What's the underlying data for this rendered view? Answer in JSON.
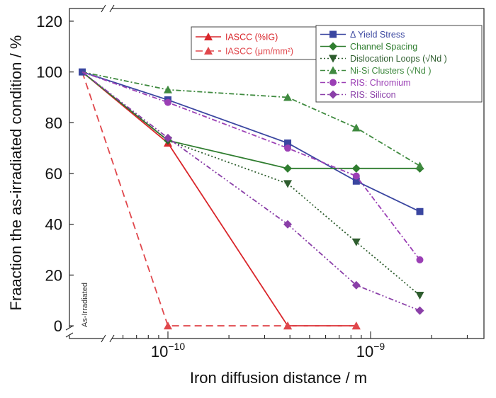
{
  "chart_data": {
    "type": "line",
    "xlabel": "Iron diffusion distance / m",
    "ylabel": "Fraaction the as-irradiated condition / %",
    "xscale": "log",
    "ylim": [
      -5,
      125
    ],
    "yticks": [
      0,
      20,
      40,
      60,
      80,
      100,
      120
    ],
    "xticks": [
      {
        "base": "10",
        "exp": "−10",
        "value": 1e-10
      },
      {
        "base": "10",
        "exp": "−9",
        "value": 1e-09
      }
    ],
    "axis_break": true,
    "baseline_annotation": "As-Irradiated",
    "grid": false,
    "legend_placement": "top-right",
    "series": [
      {
        "name": "IASCC (%IG)",
        "color": "#d9262b",
        "dash": "solid",
        "marker": "triangle-up",
        "legend_group": "left",
        "x": [
          "as-irradiated",
          1e-10,
          3.9e-10,
          8.5e-10
        ],
        "y": [
          100,
          72,
          0,
          0
        ]
      },
      {
        "name": "IASCC (μm/mm²)",
        "color": "#e0474c",
        "dash": "dashed",
        "marker": "triangle-up",
        "legend_group": "left",
        "x": [
          "as-irradiated",
          1e-10,
          3.9e-10,
          8.5e-10
        ],
        "y": [
          100,
          0,
          0,
          0
        ]
      },
      {
        "name": "Δ Yield Stress",
        "color": "#3a46a0",
        "dash": "solid",
        "marker": "square",
        "legend_group": "right",
        "x": [
          "as-irradiated",
          1e-10,
          3.9e-10,
          8.5e-10,
          1.75e-09
        ],
        "y": [
          100,
          89,
          72,
          57,
          45
        ]
      },
      {
        "name": "Channel Spacing",
        "color": "#2f7d2f",
        "dash": "solid",
        "marker": "diamond",
        "legend_group": "right",
        "x": [
          "as-irradiated",
          1e-10,
          3.9e-10,
          8.5e-10,
          1.75e-09
        ],
        "y": [
          100,
          73,
          62,
          62,
          62
        ]
      },
      {
        "name": "Dislocation Loops (√Nd )",
        "color": "#2e5d2e",
        "dash": "dotted",
        "marker": "triangle-down",
        "legend_group": "right",
        "x": [
          "as-irradiated",
          1e-10,
          3.9e-10,
          8.5e-10,
          1.75e-09
        ],
        "y": [
          100,
          73,
          56,
          33,
          12
        ]
      },
      {
        "name": "Ni-Si Clusters (√Nd )",
        "color": "#3f8a3f",
        "dash": "dashdot",
        "marker": "triangle-up",
        "legend_group": "right",
        "x": [
          "as-irradiated",
          1e-10,
          3.9e-10,
          8.5e-10,
          1.75e-09
        ],
        "y": [
          100,
          93,
          90,
          78,
          63
        ]
      },
      {
        "name": "RIS: Chromium",
        "color": "#9b3fb5",
        "dash": "dashdot",
        "marker": "circle",
        "legend_group": "right",
        "x": [
          "as-irradiated",
          1e-10,
          3.9e-10,
          8.5e-10,
          1.75e-09
        ],
        "y": [
          100,
          88,
          70,
          59,
          26
        ]
      },
      {
        "name": "RIS: Silicon",
        "color": "#8a3fa8",
        "dash": "dashdotdot",
        "marker": "diamond",
        "legend_group": "right",
        "x": [
          "as-irradiated",
          1e-10,
          3.9e-10,
          8.5e-10,
          1.75e-09
        ],
        "y": [
          100,
          74,
          40,
          16,
          6
        ]
      }
    ]
  }
}
